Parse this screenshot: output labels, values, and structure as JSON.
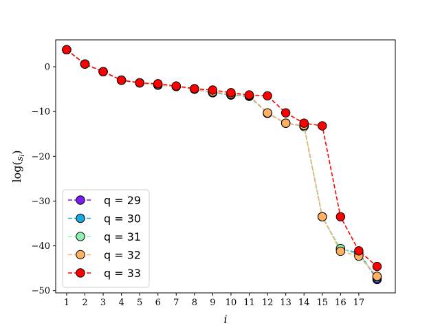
{
  "chart_data": {
    "type": "line",
    "xlabel": "i",
    "ylabel": "log(s_i)",
    "ylabel_main": "log(",
    "ylabel_sub": "i",
    "ylabel_close": ")",
    "xlim": [
      0.4,
      19.0
    ],
    "ylim": [
      -50.5,
      6.0
    ],
    "x_ticks": [
      1,
      2,
      3,
      4,
      5,
      6,
      7,
      8,
      9,
      10,
      11,
      12,
      13,
      14,
      15,
      16,
      17
    ],
    "y_ticks": [
      0,
      -10,
      -20,
      -30,
      -40,
      -50
    ],
    "grid": false,
    "legend_placement": "lower-left",
    "x": [
      1,
      2,
      3,
      4,
      5,
      6,
      7,
      8,
      9,
      10,
      11,
      12,
      13,
      14,
      15,
      16,
      17,
      18
    ],
    "series": [
      {
        "name": "q = 29",
        "color": "#7a1cf0",
        "values": [
          3.8,
          0.6,
          -1.1,
          -3.0,
          -3.6,
          -4.1,
          -4.4,
          -5.0,
          -5.8,
          -6.3,
          -6.6,
          -10.4,
          -12.6,
          -13.3,
          -33.5,
          -40.8,
          -41.5,
          -47.5
        ]
      },
      {
        "name": "q = 30",
        "color": "#1aa8e0",
        "values": [
          3.8,
          0.6,
          -1.1,
          -3.0,
          -3.6,
          -4.1,
          -4.4,
          -5.0,
          -5.8,
          -6.3,
          -6.6,
          -10.4,
          -12.6,
          -13.3,
          -33.5,
          -40.7,
          -41.6,
          -47.2
        ]
      },
      {
        "name": "q = 31",
        "color": "#8ef0b4",
        "values": [
          3.8,
          0.6,
          -1.1,
          -3.0,
          -3.6,
          -4.1,
          -4.4,
          -5.0,
          -5.7,
          -6.2,
          -6.5,
          -10.4,
          -12.6,
          -13.3,
          -33.5,
          -40.6,
          -42.0,
          -46.9
        ]
      },
      {
        "name": "q = 32",
        "color": "#ffb060",
        "values": [
          3.8,
          0.6,
          -1.1,
          -3.0,
          -3.6,
          -4.0,
          -4.4,
          -5.0,
          -5.6,
          -6.1,
          -6.4,
          -10.3,
          -12.6,
          -13.1,
          -33.5,
          -41.2,
          -42.3,
          -46.8
        ]
      },
      {
        "name": "q = 33",
        "color": "#ff0000",
        "values": [
          3.8,
          0.6,
          -1.1,
          -3.0,
          -3.6,
          -3.8,
          -4.3,
          -4.9,
          -5.2,
          -5.8,
          -6.3,
          -6.5,
          -10.3,
          -12.6,
          -13.2,
          -33.5,
          -41.1,
          -44.6
        ]
      }
    ]
  }
}
